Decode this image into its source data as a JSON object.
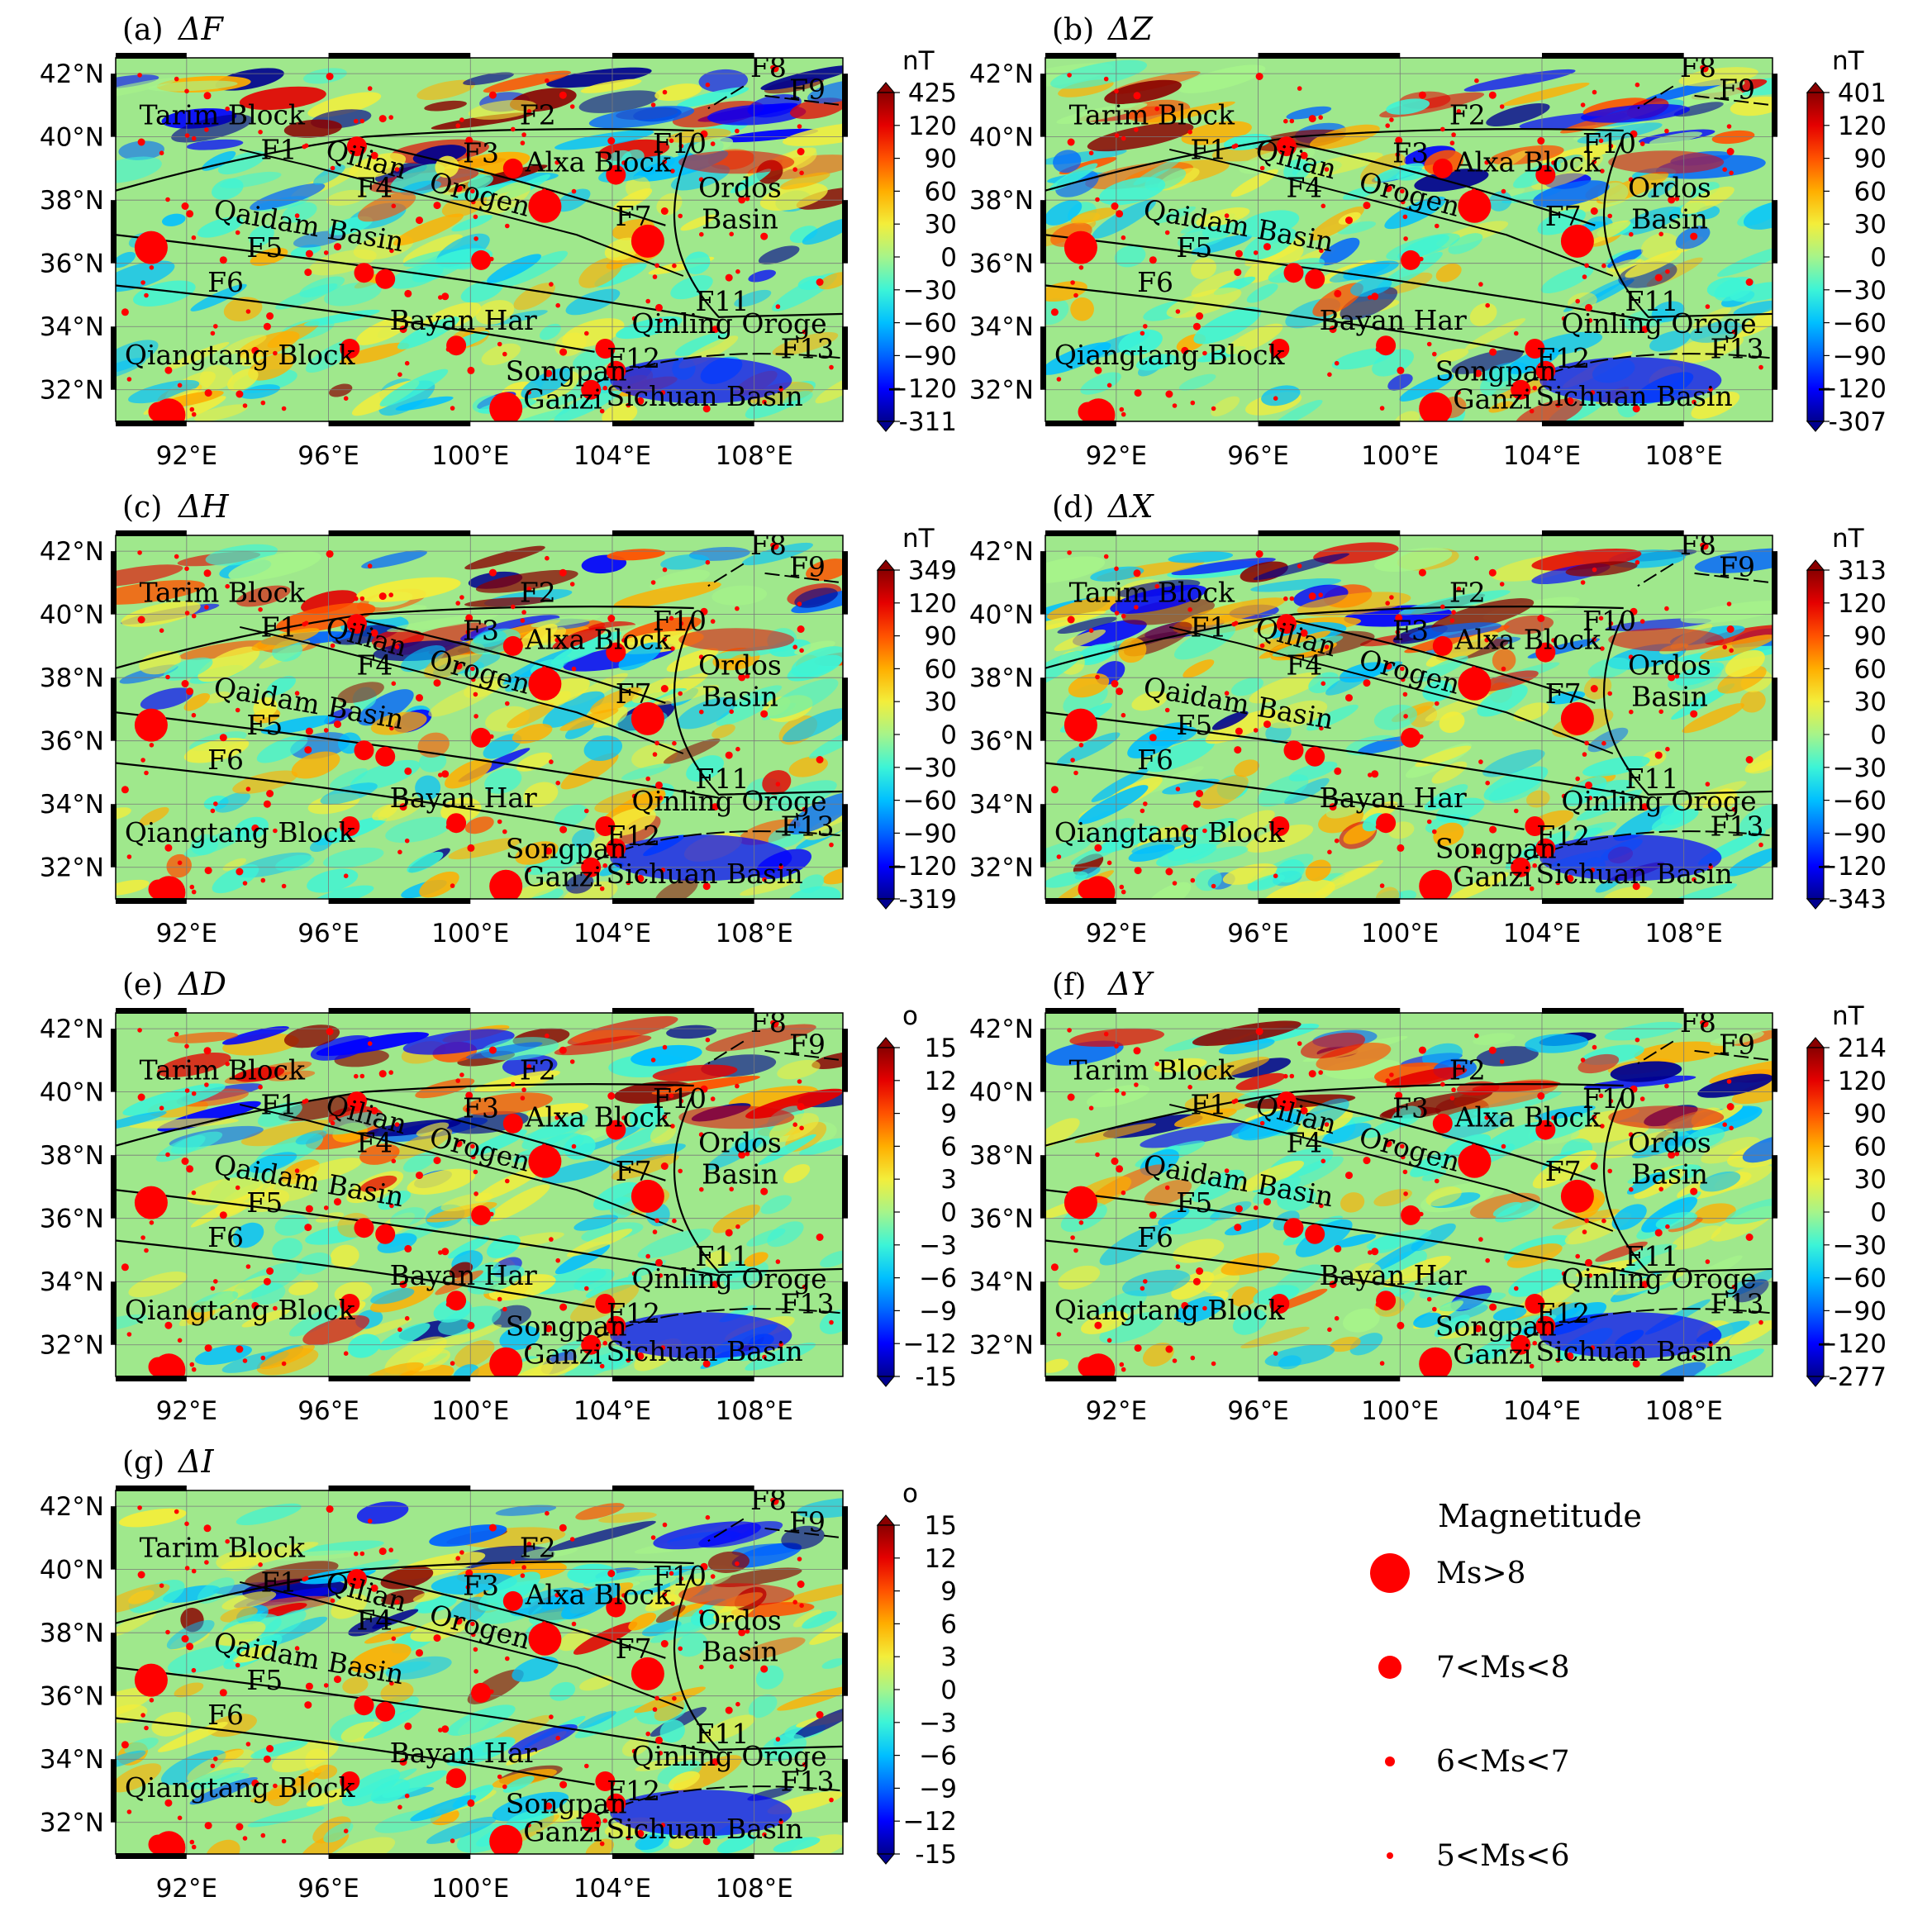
{
  "panels": [
    {
      "key": "a",
      "label": "(a)",
      "symbol": "ΔF",
      "unit": "nT",
      "cbar_max": "425",
      "cbar_min": "-311",
      "ticks": [
        "120",
        "90",
        "60",
        "30",
        "0",
        "−30",
        "−60",
        "−90",
        "−120"
      ],
      "seed": 1
    },
    {
      "key": "b",
      "label": "(b)",
      "symbol": "ΔZ",
      "unit": "nT",
      "cbar_max": "401",
      "cbar_min": "-307",
      "ticks": [
        "120",
        "90",
        "60",
        "30",
        "0",
        "−30",
        "−60",
        "−90",
        "−120"
      ],
      "seed": 2
    },
    {
      "key": "c",
      "label": "(c)",
      "symbol": "ΔH",
      "unit": "nT",
      "cbar_max": "349",
      "cbar_min": "-319",
      "ticks": [
        "120",
        "90",
        "60",
        "30",
        "0",
        "−30",
        "−60",
        "−90",
        "−120"
      ],
      "seed": 3
    },
    {
      "key": "d",
      "label": "(d)",
      "symbol": "ΔX",
      "unit": "nT",
      "cbar_max": "313",
      "cbar_min": "-343",
      "ticks": [
        "120",
        "90",
        "60",
        "30",
        "0",
        "−30",
        "−60",
        "−90",
        "−120"
      ],
      "seed": 4
    },
    {
      "key": "e",
      "label": "(e)",
      "symbol": "ΔD",
      "unit": "o",
      "cbar_max": "15",
      "cbar_min": "-15",
      "ticks": [
        "12",
        "9",
        "6",
        "3",
        "0",
        "−3",
        "−6",
        "−9",
        "−12"
      ],
      "seed": 5
    },
    {
      "key": "f",
      "label": "(f)",
      "symbol": "ΔY",
      "unit": "nT",
      "cbar_max": "214",
      "cbar_min": "-277",
      "ticks": [
        "120",
        "90",
        "60",
        "30",
        "0",
        "−30",
        "−60",
        "−90",
        "−120"
      ],
      "seed": 6
    },
    {
      "key": "g",
      "label": "(g)",
      "symbol": "ΔI",
      "unit": "o",
      "cbar_max": "15",
      "cbar_min": "-15",
      "ticks": [
        "12",
        "9",
        "6",
        "3",
        "0",
        "−3",
        "−6",
        "−9",
        "−12"
      ],
      "seed": 7
    }
  ],
  "axes": {
    "lon_ticks": [
      "92°E",
      "96°E",
      "100°E",
      "104°E",
      "108°E"
    ],
    "lon_values": [
      92,
      96,
      100,
      104,
      108
    ],
    "lat_ticks": [
      "42°N",
      "40°N",
      "38°N",
      "36°N",
      "34°N",
      "32°N"
    ],
    "lat_values": [
      42,
      40,
      38,
      36,
      34,
      32
    ],
    "lon_range": [
      90,
      110.5
    ],
    "lat_range": [
      31,
      42.5
    ]
  },
  "geology_labels": [
    {
      "text": "Tarim Block",
      "lon": 93.0,
      "lat": 40.4
    },
    {
      "text": "F1",
      "lon": 94.6,
      "lat": 39.3
    },
    {
      "text": "F2",
      "lon": 101.9,
      "lat": 40.4
    },
    {
      "text": "Qilian",
      "lon": 97.0,
      "lat": 39.0,
      "rot": 15
    },
    {
      "text": "F3",
      "lon": 100.3,
      "lat": 39.2
    },
    {
      "text": "Alxa Block",
      "lon": 103.6,
      "lat": 38.9
    },
    {
      "text": "F10",
      "lon": 105.9,
      "lat": 39.5
    },
    {
      "text": "F4",
      "lon": 97.3,
      "lat": 38.1
    },
    {
      "text": "Orogen",
      "lon": 100.2,
      "lat": 37.9,
      "rot": 15
    },
    {
      "text": "Ordos",
      "lon": 107.6,
      "lat": 38.1
    },
    {
      "text": "Basin",
      "lon": 107.6,
      "lat": 37.1
    },
    {
      "text": "F7",
      "lon": 104.6,
      "lat": 37.2
    },
    {
      "text": "Qaidam Basin",
      "lon": 95.4,
      "lat": 36.9,
      "rot": 10
    },
    {
      "text": "F5",
      "lon": 94.2,
      "lat": 36.2
    },
    {
      "text": "F6",
      "lon": 93.1,
      "lat": 35.1
    },
    {
      "text": "F11",
      "lon": 107.1,
      "lat": 34.5
    },
    {
      "text": "Bayan Har",
      "lon": 99.8,
      "lat": 33.9
    },
    {
      "text": "Qinling Oroge",
      "lon": 107.3,
      "lat": 33.8
    },
    {
      "text": "Qiangtang Block",
      "lon": 93.5,
      "lat": 32.8
    },
    {
      "text": "F13",
      "lon": 109.5,
      "lat": 33.0
    },
    {
      "text": "Songpan",
      "lon": 102.7,
      "lat": 32.3
    },
    {
      "text": "F12",
      "lon": 104.6,
      "lat": 32.7
    },
    {
      "text": "Ganzi",
      "lon": 102.6,
      "lat": 31.4
    },
    {
      "text": "Sichuan Basin",
      "lon": 106.6,
      "lat": 31.5
    },
    {
      "text": "F8",
      "lon": 108.4,
      "lat": 41.9
    },
    {
      "text": "F9",
      "lon": 109.5,
      "lat": 41.2
    }
  ],
  "legend": {
    "title": "Magnetitude",
    "items": [
      {
        "label": "Ms>8",
        "size": 4
      },
      {
        "label": "7<Ms<8",
        "size": 3
      },
      {
        "label": "6<Ms<7",
        "size": 2
      },
      {
        "label": "5<Ms<6",
        "size": 1
      }
    ]
  },
  "earthquakes_major": [
    {
      "lon": 91.0,
      "lat": 36.5,
      "mag": 4
    },
    {
      "lon": 102.1,
      "lat": 37.8,
      "mag": 4
    },
    {
      "lon": 105.0,
      "lat": 36.7,
      "mag": 4
    },
    {
      "lon": 91.5,
      "lat": 31.2,
      "mag": 4
    },
    {
      "lon": 101.0,
      "lat": 31.4,
      "mag": 4
    },
    {
      "lon": 96.8,
      "lat": 39.7,
      "mag": 3
    },
    {
      "lon": 101.2,
      "lat": 39.0,
      "mag": 3
    },
    {
      "lon": 104.1,
      "lat": 38.8,
      "mag": 3
    },
    {
      "lon": 100.3,
      "lat": 36.1,
      "mag": 3
    },
    {
      "lon": 97.0,
      "lat": 35.7,
      "mag": 3
    },
    {
      "lon": 97.6,
      "lat": 35.5,
      "mag": 3
    },
    {
      "lon": 96.6,
      "lat": 33.3,
      "mag": 3
    },
    {
      "lon": 99.6,
      "lat": 33.4,
      "mag": 3
    },
    {
      "lon": 103.8,
      "lat": 33.3,
      "mag": 3
    },
    {
      "lon": 104.1,
      "lat": 32.6,
      "mag": 3
    },
    {
      "lon": 103.4,
      "lat": 32.0,
      "mag": 3
    },
    {
      "lon": 91.2,
      "lat": 31.3,
      "mag": 3
    }
  ],
  "faults": [
    {
      "name": "F1",
      "lat_start": 38.3,
      "lat_end": 40.0,
      "lon_start": 90.0,
      "lon_end": 97.0
    },
    {
      "name": "F2",
      "lat_start": 40.0,
      "lat_end": 40.2,
      "lon_start": 97.0,
      "lon_end": 106.3
    },
    {
      "name": "F4",
      "lat_start": 39.8,
      "lat_end": 37.2,
      "lon_start": 97.0,
      "lon_end": 105.5
    },
    {
      "name": "F5",
      "lat_start": 36.9,
      "lat_end": 34.2,
      "lon_start": 90.0,
      "lon_end": 107.0
    },
    {
      "name": "F6",
      "lat_start": 35.3,
      "lat_end": 33.2,
      "lon_start": 90.0,
      "lon_end": 103.5
    }
  ],
  "colors": {
    "cmap": [
      "#00008f",
      "#0000ff",
      "#0064ff",
      "#00bfff",
      "#3cf4d7",
      "#a6f48a",
      "#f3ee3b",
      "#ffae00",
      "#ff5200",
      "#e50000",
      "#8a0000"
    ],
    "quake": "#ff0000",
    "fault": "#000000"
  }
}
